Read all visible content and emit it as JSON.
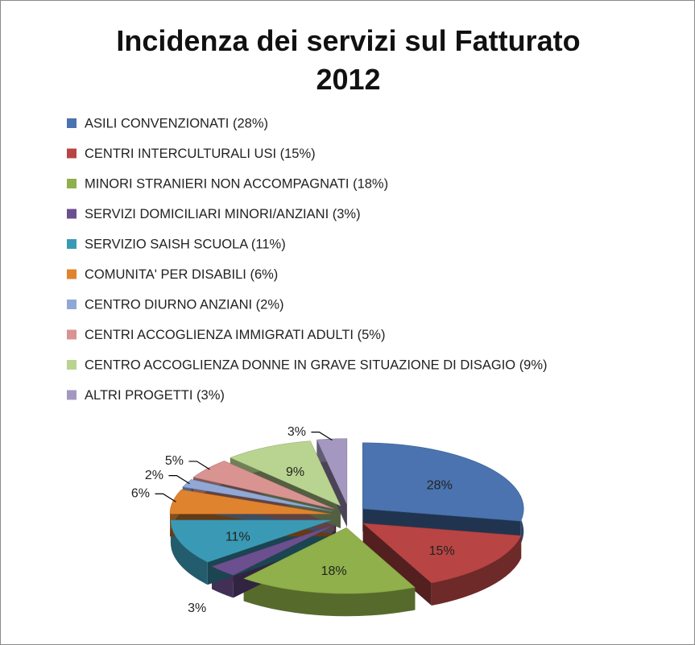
{
  "chart_data": {
    "type": "pie",
    "title": "Incidenza dei servizi sul Fatturato 2012",
    "categories": [
      "ASILI CONVENZIONATI (28%)",
      "CENTRI INTERCULTURALI USI (15%)",
      "MINORI STRANIERI NON ACCOMPAGNATI (18%)",
      "SERVIZI DOMICILIARI MINORI/ANZIANI (3%)",
      "SERVIZIO SAISH SCUOLA (11%)",
      "COMUNITA' PER DISABILI (6%)",
      "CENTRO DIURNO ANZIANI (2%)",
      "CENTRI ACCOGLIENZA IMMIGRATI ADULTI (5%)",
      "CENTRO ACCOGLIENZA DONNE IN GRAVE SITUAZIONE DI DISAGIO (9%)",
      "ALTRI PROGETTI (3%)"
    ],
    "values": [
      28,
      15,
      18,
      3,
      11,
      6,
      2,
      5,
      9,
      3
    ],
    "value_labels": [
      "28%",
      "15%",
      "18%",
      "3%",
      "11%",
      "6%",
      "2%",
      "5%",
      "9%",
      "3%"
    ],
    "colors": [
      "#4a73b0",
      "#b84444",
      "#8fb04a",
      "#6c4f8f",
      "#3a9ab5",
      "#e0832e",
      "#90a8d6",
      "#d99391",
      "#b9d490",
      "#a498c0"
    ],
    "legend": "top"
  }
}
